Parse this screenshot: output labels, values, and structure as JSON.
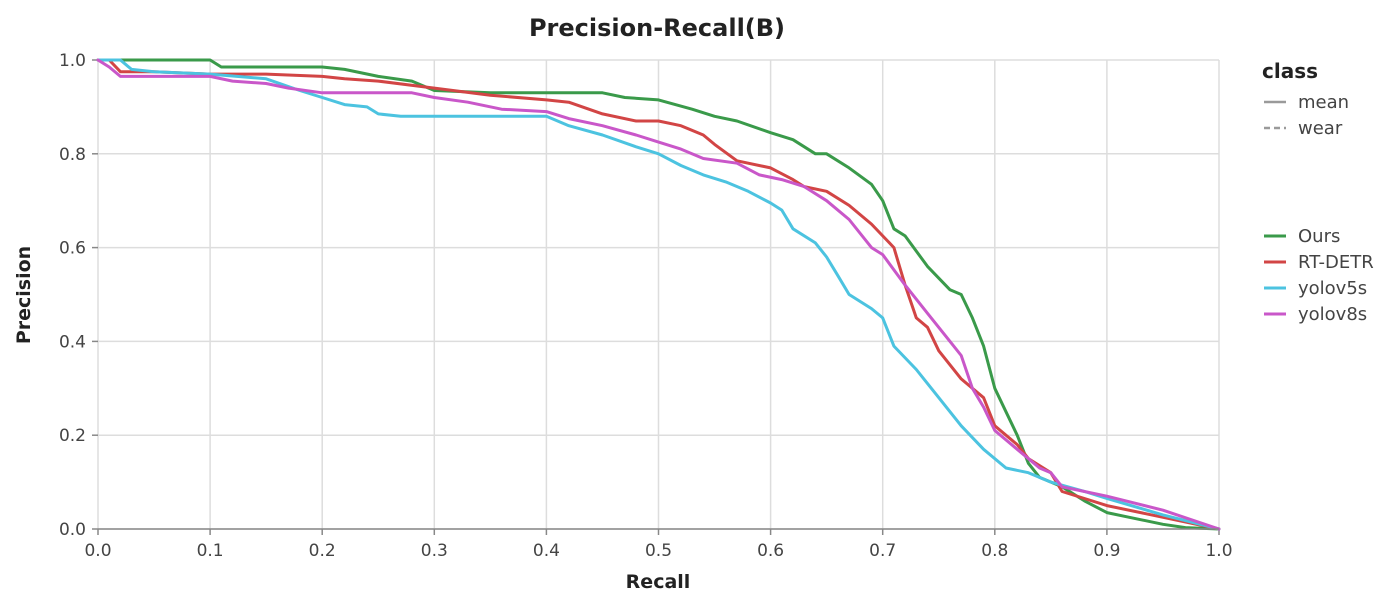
{
  "chart_data": {
    "type": "line",
    "title": "Precision-Recall(B)",
    "xlabel": "Recall",
    "ylabel": "Precision",
    "xlim": [
      0,
      1
    ],
    "ylim": [
      0,
      1
    ],
    "x_ticks": [
      "0.0",
      "0.1",
      "0.2",
      "0.3",
      "0.4",
      "0.5",
      "0.6",
      "0.7",
      "0.8",
      "0.9",
      "1.0"
    ],
    "y_ticks": [
      "0.0",
      "0.2",
      "0.4",
      "0.6",
      "0.8",
      "1.0"
    ],
    "grid": true,
    "legend_placement": "right",
    "legend": {
      "class_title": "class",
      "class_entries": [
        {
          "label": "mean",
          "style": "solid"
        },
        {
          "label": "wear",
          "style": "dashed"
        }
      ]
    },
    "series": [
      {
        "name": "Ours",
        "color": "#3a9a4a",
        "points": [
          [
            0.0,
            1.0
          ],
          [
            0.02,
            1.0
          ],
          [
            0.05,
            1.0
          ],
          [
            0.1,
            1.0
          ],
          [
            0.11,
            0.985
          ],
          [
            0.15,
            0.985
          ],
          [
            0.2,
            0.985
          ],
          [
            0.22,
            0.98
          ],
          [
            0.25,
            0.965
          ],
          [
            0.28,
            0.955
          ],
          [
            0.3,
            0.935
          ],
          [
            0.35,
            0.93
          ],
          [
            0.4,
            0.93
          ],
          [
            0.45,
            0.93
          ],
          [
            0.47,
            0.92
          ],
          [
            0.5,
            0.915
          ],
          [
            0.53,
            0.895
          ],
          [
            0.55,
            0.88
          ],
          [
            0.57,
            0.87
          ],
          [
            0.6,
            0.845
          ],
          [
            0.62,
            0.83
          ],
          [
            0.64,
            0.8
          ],
          [
            0.65,
            0.8
          ],
          [
            0.67,
            0.77
          ],
          [
            0.69,
            0.735
          ],
          [
            0.7,
            0.7
          ],
          [
            0.71,
            0.64
          ],
          [
            0.72,
            0.625
          ],
          [
            0.74,
            0.56
          ],
          [
            0.76,
            0.51
          ],
          [
            0.77,
            0.5
          ],
          [
            0.78,
            0.45
          ],
          [
            0.79,
            0.39
          ],
          [
            0.8,
            0.3
          ],
          [
            0.81,
            0.25
          ],
          [
            0.82,
            0.2
          ],
          [
            0.83,
            0.14
          ],
          [
            0.84,
            0.11
          ],
          [
            0.86,
            0.09
          ],
          [
            0.88,
            0.06
          ],
          [
            0.9,
            0.035
          ],
          [
            0.92,
            0.025
          ],
          [
            0.95,
            0.01
          ],
          [
            0.97,
            0.003
          ],
          [
            1.0,
            0.0
          ]
        ]
      },
      {
        "name": "RT-DETR",
        "color": "#d24545",
        "points": [
          [
            0.0,
            1.0
          ],
          [
            0.01,
            1.0
          ],
          [
            0.02,
            0.975
          ],
          [
            0.05,
            0.975
          ],
          [
            0.1,
            0.97
          ],
          [
            0.15,
            0.97
          ],
          [
            0.2,
            0.965
          ],
          [
            0.22,
            0.96
          ],
          [
            0.25,
            0.955
          ],
          [
            0.3,
            0.94
          ],
          [
            0.35,
            0.925
          ],
          [
            0.4,
            0.915
          ],
          [
            0.42,
            0.91
          ],
          [
            0.45,
            0.885
          ],
          [
            0.48,
            0.87
          ],
          [
            0.5,
            0.87
          ],
          [
            0.52,
            0.86
          ],
          [
            0.54,
            0.84
          ],
          [
            0.55,
            0.82
          ],
          [
            0.57,
            0.785
          ],
          [
            0.6,
            0.77
          ],
          [
            0.62,
            0.745
          ],
          [
            0.63,
            0.73
          ],
          [
            0.65,
            0.72
          ],
          [
            0.67,
            0.69
          ],
          [
            0.69,
            0.65
          ],
          [
            0.71,
            0.6
          ],
          [
            0.72,
            0.52
          ],
          [
            0.73,
            0.45
          ],
          [
            0.74,
            0.43
          ],
          [
            0.75,
            0.38
          ],
          [
            0.77,
            0.32
          ],
          [
            0.79,
            0.28
          ],
          [
            0.8,
            0.22
          ],
          [
            0.82,
            0.18
          ],
          [
            0.83,
            0.15
          ],
          [
            0.85,
            0.12
          ],
          [
            0.86,
            0.08
          ],
          [
            0.88,
            0.065
          ],
          [
            0.9,
            0.05
          ],
          [
            0.95,
            0.025
          ],
          [
            1.0,
            0.0
          ]
        ]
      },
      {
        "name": "yolov5s",
        "color": "#4cc3e0",
        "points": [
          [
            0.0,
            1.0
          ],
          [
            0.02,
            1.0
          ],
          [
            0.03,
            0.98
          ],
          [
            0.05,
            0.975
          ],
          [
            0.1,
            0.97
          ],
          [
            0.15,
            0.96
          ],
          [
            0.18,
            0.935
          ],
          [
            0.2,
            0.92
          ],
          [
            0.22,
            0.905
          ],
          [
            0.24,
            0.9
          ],
          [
            0.25,
            0.885
          ],
          [
            0.27,
            0.88
          ],
          [
            0.3,
            0.88
          ],
          [
            0.35,
            0.88
          ],
          [
            0.4,
            0.88
          ],
          [
            0.42,
            0.86
          ],
          [
            0.45,
            0.84
          ],
          [
            0.48,
            0.815
          ],
          [
            0.5,
            0.8
          ],
          [
            0.52,
            0.775
          ],
          [
            0.54,
            0.755
          ],
          [
            0.56,
            0.74
          ],
          [
            0.58,
            0.72
          ],
          [
            0.6,
            0.695
          ],
          [
            0.61,
            0.68
          ],
          [
            0.62,
            0.64
          ],
          [
            0.64,
            0.61
          ],
          [
            0.65,
            0.58
          ],
          [
            0.66,
            0.54
          ],
          [
            0.67,
            0.5
          ],
          [
            0.69,
            0.47
          ],
          [
            0.7,
            0.45
          ],
          [
            0.71,
            0.39
          ],
          [
            0.73,
            0.34
          ],
          [
            0.75,
            0.28
          ],
          [
            0.77,
            0.22
          ],
          [
            0.79,
            0.17
          ],
          [
            0.81,
            0.13
          ],
          [
            0.83,
            0.12
          ],
          [
            0.85,
            0.1
          ],
          [
            0.88,
            0.08
          ],
          [
            0.9,
            0.065
          ],
          [
            0.95,
            0.03
          ],
          [
            1.0,
            0.0
          ]
        ]
      },
      {
        "name": "yolov8s",
        "color": "#c957c9",
        "points": [
          [
            0.0,
            1.0
          ],
          [
            0.01,
            0.985
          ],
          [
            0.02,
            0.965
          ],
          [
            0.05,
            0.965
          ],
          [
            0.1,
            0.965
          ],
          [
            0.12,
            0.955
          ],
          [
            0.15,
            0.95
          ],
          [
            0.17,
            0.94
          ],
          [
            0.2,
            0.93
          ],
          [
            0.25,
            0.93
          ],
          [
            0.28,
            0.93
          ],
          [
            0.3,
            0.92
          ],
          [
            0.33,
            0.91
          ],
          [
            0.36,
            0.895
          ],
          [
            0.4,
            0.89
          ],
          [
            0.42,
            0.875
          ],
          [
            0.45,
            0.86
          ],
          [
            0.48,
            0.84
          ],
          [
            0.5,
            0.825
          ],
          [
            0.52,
            0.81
          ],
          [
            0.54,
            0.79
          ],
          [
            0.57,
            0.78
          ],
          [
            0.59,
            0.755
          ],
          [
            0.61,
            0.745
          ],
          [
            0.63,
            0.73
          ],
          [
            0.65,
            0.7
          ],
          [
            0.67,
            0.66
          ],
          [
            0.69,
            0.6
          ],
          [
            0.7,
            0.585
          ],
          [
            0.72,
            0.52
          ],
          [
            0.74,
            0.46
          ],
          [
            0.76,
            0.4
          ],
          [
            0.77,
            0.37
          ],
          [
            0.78,
            0.3
          ],
          [
            0.79,
            0.26
          ],
          [
            0.8,
            0.21
          ],
          [
            0.82,
            0.17
          ],
          [
            0.84,
            0.13
          ],
          [
            0.85,
            0.12
          ],
          [
            0.86,
            0.09
          ],
          [
            0.88,
            0.08
          ],
          [
            0.9,
            0.07
          ],
          [
            0.95,
            0.04
          ],
          [
            1.0,
            0.0
          ]
        ]
      }
    ]
  }
}
